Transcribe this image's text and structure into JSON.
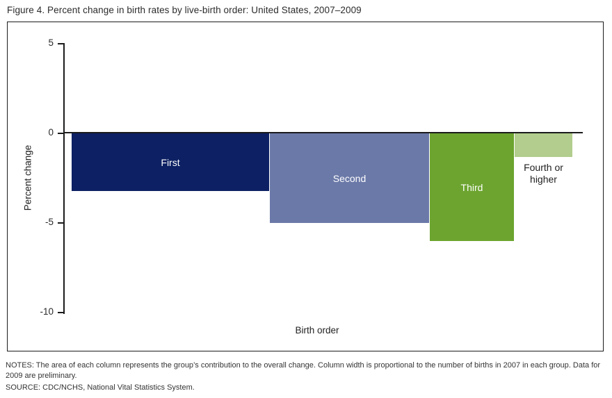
{
  "figure": {
    "title": "Figure 4. Percent change in birth rates by live-birth order: United States, 2007–2009",
    "notes": "NOTES: The area of each column represents the group’s contribution to the overall change. Column width is proportional to the number of births in 2007 in each group. Data for 2009 are preliminary.",
    "source": "SOURCE: CDC/NCHS, National Vital Statistics System."
  },
  "chart_data": {
    "type": "bar",
    "title": "Figure 4. Percent change in birth rates by live-birth order: United States, 2007–2009",
    "xlabel": "Birth order",
    "ylabel": "Percent change",
    "ylim": [
      -10,
      5
    ],
    "yticks": [
      5,
      0,
      -5,
      -10
    ],
    "grid": false,
    "legend": "none",
    "variable_width_note": "Column width is proportional to the number of births in 2007 in each group",
    "categories": [
      "First",
      "Second",
      "Third",
      "Fourth or higher"
    ],
    "values": [
      -3.2,
      -5.0,
      -6.0,
      -1.3
    ],
    "width_fractions": [
      0.396,
      0.319,
      0.169,
      0.116
    ],
    "colors": [
      "#0c2063",
      "#6b79a8",
      "#6ca42f",
      "#b2cd8d"
    ],
    "label_positions": [
      "inside",
      "inside",
      "inside",
      "below"
    ],
    "label_colors": [
      "#ffffff",
      "#ffffff",
      "#ffffff",
      "#1f1f1f"
    ]
  }
}
